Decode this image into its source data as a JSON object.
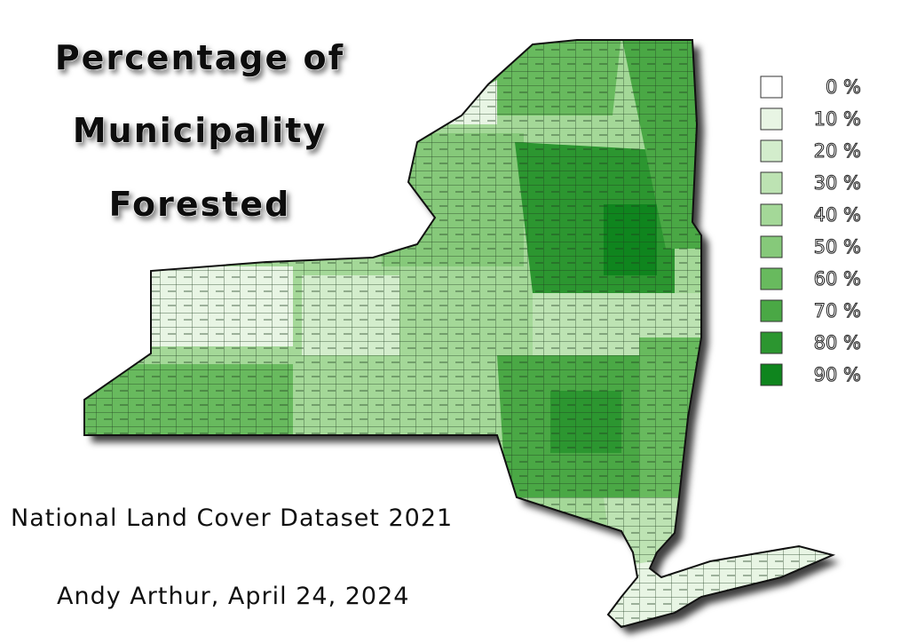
{
  "title": {
    "lines": [
      "Percentage of",
      "Municipality",
      "Forested"
    ]
  },
  "legend": {
    "items": [
      {
        "label": "0 %",
        "color": "#ffffff"
      },
      {
        "label": "10 %",
        "color": "#e8f5e4"
      },
      {
        "label": "20 %",
        "color": "#d3edcc"
      },
      {
        "label": "30 %",
        "color": "#bde3b3"
      },
      {
        "label": "40 %",
        "color": "#a4d898"
      },
      {
        "label": "50 %",
        "color": "#86c97a"
      },
      {
        "label": "60 %",
        "color": "#68ba5e"
      },
      {
        "label": "70 %",
        "color": "#4aa845"
      },
      {
        "label": "80 %",
        "color": "#2c9630"
      },
      {
        "label": "90 %",
        "color": "#0f851e"
      }
    ]
  },
  "source": "National Land Cover Dataset 2021",
  "credit": "Andy Arthur, April 24, 2024"
}
